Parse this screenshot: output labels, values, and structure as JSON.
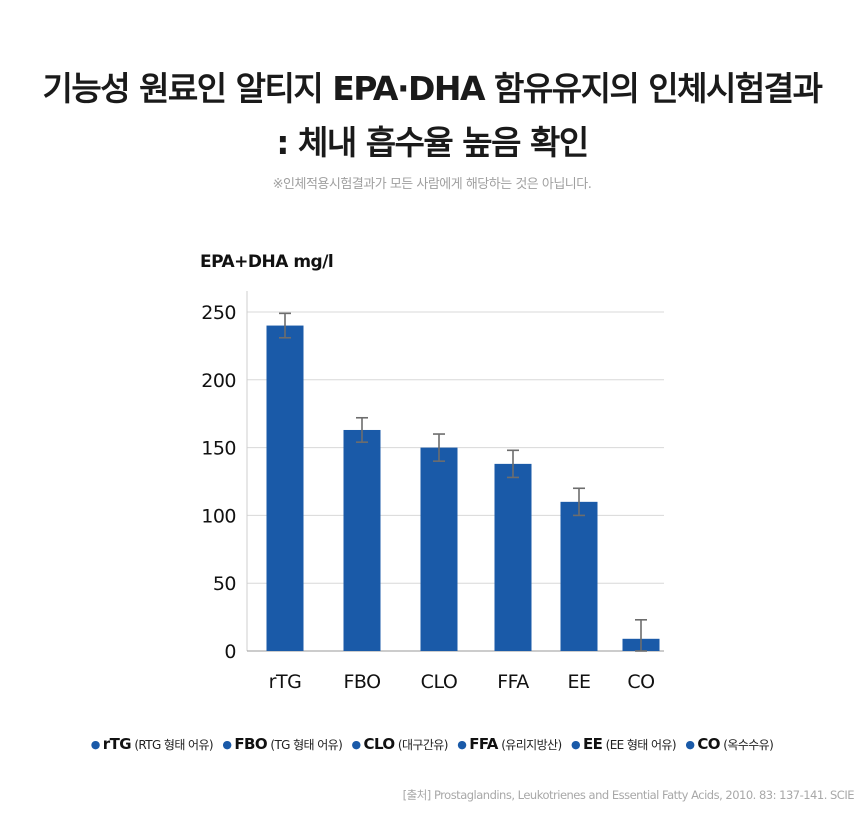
{
  "title_line1": "기능성 원료인 알티지 EPA·DHA 함유유지의 인체시험결과",
  "title_line2": ": 체내 흡수율 높음 확인",
  "note": "※인체적용시험결과가 모든 사람에게 해당하는 것은 아닙니다.",
  "legend": [
    {
      "code": "rTG",
      "desc": "(RTG 형태 어유)"
    },
    {
      "code": "FBO",
      "desc": "(TG 형태 어유)"
    },
    {
      "code": "CLO",
      "desc": "(대구간유)"
    },
    {
      "code": "FFA",
      "desc": "(유리지방산)"
    },
    {
      "code": "EE",
      "desc": "(EE 형태 어유)"
    },
    {
      "code": "CO",
      "desc": "(옥수수유)"
    }
  ],
  "source": "[출처] Prostaglandins, Leukotrienes and Essential Fatty Acids, 2010. 83: 137-141. SCIE",
  "chart_data": {
    "type": "bar",
    "ylabel": "EPA+DHA mg/l",
    "xlabel": "",
    "categories": [
      "rTG",
      "FBO",
      "CLO",
      "FFA",
      "EE",
      "CO"
    ],
    "values": [
      240,
      163,
      150,
      138,
      110,
      9
    ],
    "errors": [
      9,
      9,
      10,
      10,
      10,
      14
    ],
    "ylim": [
      0,
      250
    ],
    "yticks": [
      0,
      50,
      100,
      150,
      200,
      250
    ],
    "grid": true,
    "bar_color": "#1a5aa8",
    "error_color": "#6d6d6d",
    "grid_color": "#d8d8d8"
  }
}
